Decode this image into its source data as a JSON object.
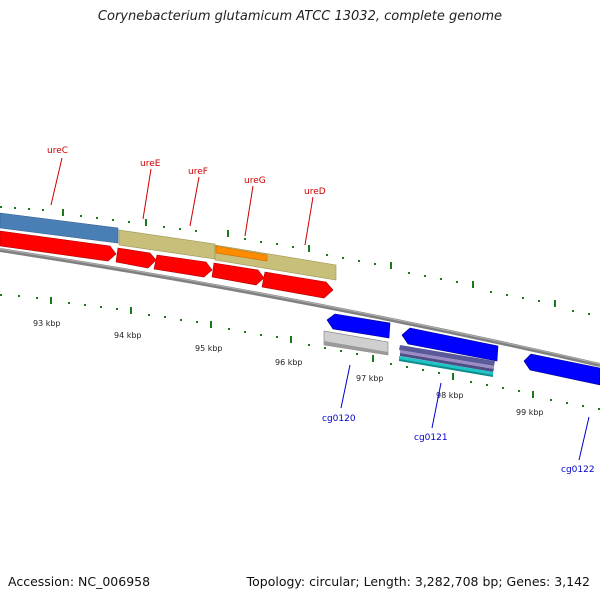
{
  "header": {
    "title": "Corynebacterium glutamicum ATCC 13032, complete genome"
  },
  "footer": {
    "accession": "Accession: NC_006958",
    "summary": "Topology: circular; Length: 3,282,708 bp; Genes: 3,142"
  },
  "colors": {
    "forward_gene": "#ff0000",
    "reverse_gene": "#0000ff",
    "operon_blue": "#4a7fb5",
    "operon_olive": "#c8c07a",
    "highlight_orange": "#ff8c00",
    "label_forward": "#cc0000",
    "label_reverse": "#0000cc",
    "tick_green": "#1a7a1a",
    "backbone": "#808080"
  },
  "genes_forward": [
    {
      "name": "ureC"
    },
    {
      "name": "ureE"
    },
    {
      "name": "ureF"
    },
    {
      "name": "ureG"
    },
    {
      "name": "ureD"
    }
  ],
  "genes_reverse": [
    {
      "name": "cg0120"
    },
    {
      "name": "cg0121"
    },
    {
      "name": "cg0122"
    }
  ],
  "scale": {
    "labels": [
      "93 kbp",
      "94 kbp",
      "95 kbp",
      "96 kbp",
      "97 kbp",
      "98 kbp",
      "99 kbp"
    ]
  }
}
